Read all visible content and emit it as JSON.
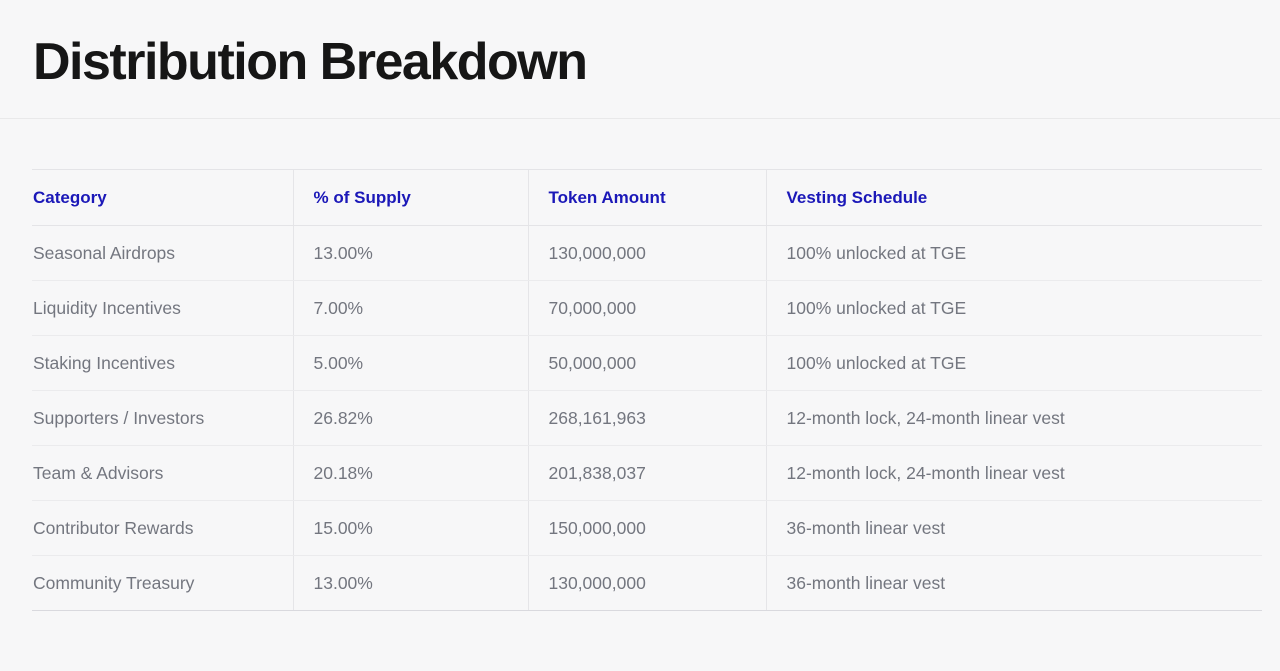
{
  "page": {
    "title": "Distribution Breakdown"
  },
  "colors": {
    "accent_header_blue": "#1b18b8",
    "body_text_gray": "#73767f",
    "title_black": "#161616",
    "page_background": "#f7f7f8",
    "divider": "#e9e9ea"
  },
  "table": {
    "columns": [
      {
        "label": "Category"
      },
      {
        "label": "% of Supply"
      },
      {
        "label": "Token Amount"
      },
      {
        "label": "Vesting Schedule"
      }
    ],
    "rows": [
      {
        "category": "Seasonal Airdrops",
        "supply": "13.00%",
        "amount": "130,000,000",
        "vesting": "100% unlocked at TGE"
      },
      {
        "category": "Liquidity Incentives",
        "supply": "7.00%",
        "amount": "70,000,000",
        "vesting": "100% unlocked at TGE"
      },
      {
        "category": "Staking Incentives",
        "supply": "5.00%",
        "amount": "50,000,000",
        "vesting": "100% unlocked at TGE"
      },
      {
        "category": "Supporters / Investors",
        "supply": "26.82%",
        "amount": "268,161,963",
        "vesting": "12-month lock, 24-month linear vest"
      },
      {
        "category": "Team & Advisors",
        "supply": "20.18%",
        "amount": "201,838,037",
        "vesting": "12-month lock, 24-month linear vest"
      },
      {
        "category": "Contributor Rewards",
        "supply": "15.00%",
        "amount": "150,000,000",
        "vesting": "36-month linear vest"
      },
      {
        "category": "Community Treasury",
        "supply": "13.00%",
        "amount": "130,000,000",
        "vesting": "36-month linear vest"
      }
    ]
  }
}
